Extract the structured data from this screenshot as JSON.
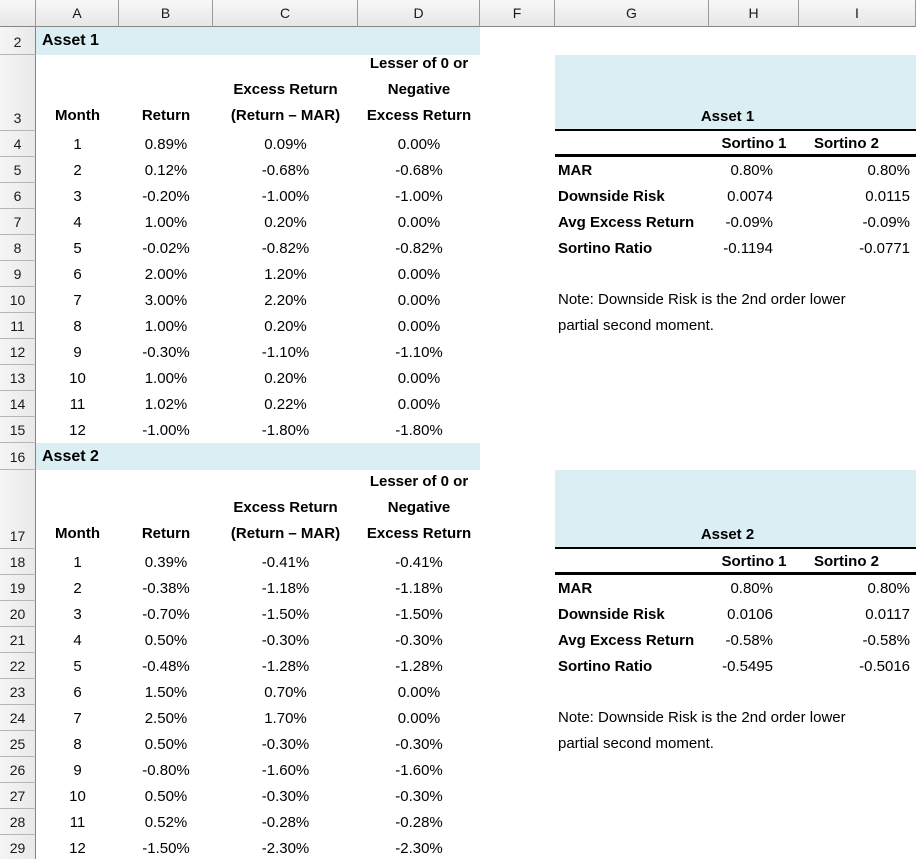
{
  "columns": [
    "A",
    "B",
    "C",
    "D",
    "F",
    "G",
    "H",
    "I"
  ],
  "row_numbers": [
    "2",
    "3",
    "4",
    "5",
    "6",
    "7",
    "8",
    "9",
    "10",
    "11",
    "12",
    "13",
    "14",
    "15",
    "16",
    "17",
    "18",
    "19",
    "20",
    "21",
    "22",
    "23",
    "24",
    "25",
    "26",
    "27",
    "28",
    "29"
  ],
  "colors": {
    "band_blue": "#DAEEF3",
    "grid_header_border": "#9B9B9B"
  },
  "asset1": {
    "section_title": "Asset 1",
    "headers": {
      "month": "Month",
      "ret": "Return",
      "excess_l1": "Excess Return",
      "excess_l2": "(Return – MAR)",
      "lesser_l1": "Lesser of 0 or",
      "lesser_l2": "Negative",
      "lesser_l3": "Excess Return"
    },
    "data": [
      {
        "m": "1",
        "r": "0.89%",
        "e": "0.09%",
        "l": "0.00%"
      },
      {
        "m": "2",
        "r": "0.12%",
        "e": "-0.68%",
        "l": "-0.68%"
      },
      {
        "m": "3",
        "r": "-0.20%",
        "e": "-1.00%",
        "l": "-1.00%"
      },
      {
        "m": "4",
        "r": "1.00%",
        "e": "0.20%",
        "l": "0.00%"
      },
      {
        "m": "5",
        "r": "-0.02%",
        "e": "-0.82%",
        "l": "-0.82%"
      },
      {
        "m": "6",
        "r": "2.00%",
        "e": "1.20%",
        "l": "0.00%"
      },
      {
        "m": "7",
        "r": "3.00%",
        "e": "2.20%",
        "l": "0.00%"
      },
      {
        "m": "8",
        "r": "1.00%",
        "e": "0.20%",
        "l": "0.00%"
      },
      {
        "m": "9",
        "r": "-0.30%",
        "e": "-1.10%",
        "l": "-1.10%"
      },
      {
        "m": "10",
        "r": "1.00%",
        "e": "0.20%",
        "l": "0.00%"
      },
      {
        "m": "11",
        "r": "1.02%",
        "e": "0.22%",
        "l": "0.00%"
      },
      {
        "m": "12",
        "r": "-1.00%",
        "e": "-1.80%",
        "l": "-1.80%"
      }
    ],
    "panel": {
      "title": "Asset 1",
      "col1": "Sortino 1",
      "col2": "Sortino 2",
      "mar_label": "MAR",
      "mar_1": "0.80%",
      "mar_2": "0.80%",
      "dr_label": "Downside Risk",
      "dr_1": "0.0074",
      "dr_2": "0.0115",
      "aer_label": "Avg Excess Return",
      "aer_1": "-0.09%",
      "aer_2": "-0.09%",
      "sr_label": "Sortino Ratio",
      "sr_1": "-0.1194",
      "sr_2": "-0.0771",
      "note": "Note: Downside Risk is the 2nd order lower partial second moment."
    }
  },
  "asset2": {
    "section_title": "Asset 2",
    "headers": {
      "month": "Month",
      "ret": "Return",
      "excess_l1": "Excess Return",
      "excess_l2": "(Return – MAR)",
      "lesser_l1": "Lesser of 0 or",
      "lesser_l2": "Negative",
      "lesser_l3": "Excess Return"
    },
    "data": [
      {
        "m": "1",
        "r": "0.39%",
        "e": "-0.41%",
        "l": "-0.41%"
      },
      {
        "m": "2",
        "r": "-0.38%",
        "e": "-1.18%",
        "l": "-1.18%"
      },
      {
        "m": "3",
        "r": "-0.70%",
        "e": "-1.50%",
        "l": "-1.50%"
      },
      {
        "m": "4",
        "r": "0.50%",
        "e": "-0.30%",
        "l": "-0.30%"
      },
      {
        "m": "5",
        "r": "-0.48%",
        "e": "-1.28%",
        "l": "-1.28%"
      },
      {
        "m": "6",
        "r": "1.50%",
        "e": "0.70%",
        "l": "0.00%"
      },
      {
        "m": "7",
        "r": "2.50%",
        "e": "1.70%",
        "l": "0.00%"
      },
      {
        "m": "8",
        "r": "0.50%",
        "e": "-0.30%",
        "l": "-0.30%"
      },
      {
        "m": "9",
        "r": "-0.80%",
        "e": "-1.60%",
        "l": "-1.60%"
      },
      {
        "m": "10",
        "r": "0.50%",
        "e": "-0.30%",
        "l": "-0.30%"
      },
      {
        "m": "11",
        "r": "0.52%",
        "e": "-0.28%",
        "l": "-0.28%"
      },
      {
        "m": "12",
        "r": "-1.50%",
        "e": "-2.30%",
        "l": "-2.30%"
      }
    ],
    "panel": {
      "title": "Asset 2",
      "col1": "Sortino 1",
      "col2": "Sortino 2",
      "mar_label": "MAR",
      "mar_1": "0.80%",
      "mar_2": "0.80%",
      "dr_label": "Downside Risk",
      "dr_1": "0.0106",
      "dr_2": "0.0117",
      "aer_label": "Avg Excess Return",
      "aer_1": "-0.58%",
      "aer_2": "-0.58%",
      "sr_label": "Sortino Ratio",
      "sr_1": "-0.5495",
      "sr_2": "-0.5016",
      "note": "Note: Downside Risk is the 2nd order lower partial second moment."
    }
  }
}
